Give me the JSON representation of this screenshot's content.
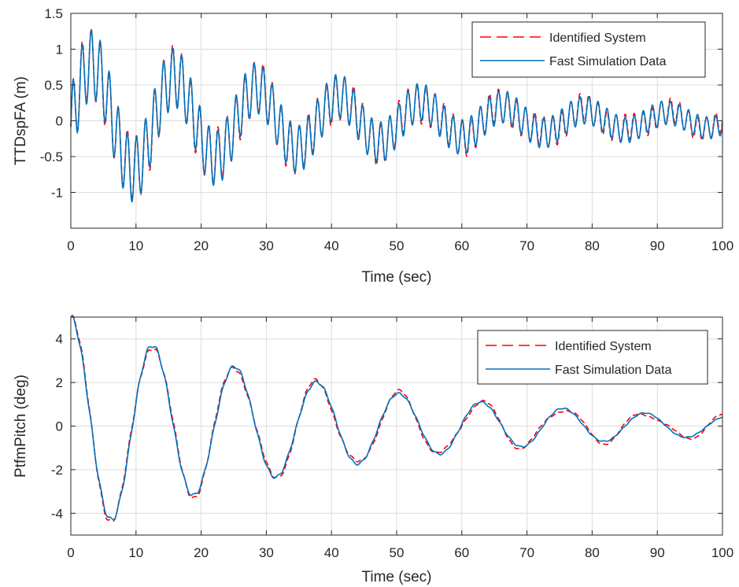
{
  "chart_data": [
    {
      "type": "line",
      "xlabel": "Time (sec)",
      "ylabel": "TTDspFA (m)",
      "xlim": [
        0,
        100
      ],
      "ylim": [
        -1.5,
        1.5
      ],
      "xticks": [
        0,
        10,
        20,
        30,
        40,
        50,
        60,
        70,
        80,
        90,
        100
      ],
      "yticks": [
        -1,
        -0.5,
        0,
        0.5,
        1,
        1.5
      ],
      "ytick_labels": [
        "-1",
        "-0.5",
        "0",
        "0.5",
        "1",
        "1.5"
      ],
      "grid": true,
      "legend_position": "top-right",
      "series": [
        {
          "name": "Identified System",
          "color": "#ff0000",
          "style": "dashed"
        },
        {
          "name": "Fast Simulation Data",
          "color": "#0072bd",
          "style": "solid"
        }
      ],
      "signal_description": {
        "low_mode_period_sec": 12.6,
        "low_mode_amplitude_start": 0.85,
        "low_mode_decay_per_sec": 0.022,
        "high_mode_frequency_hz": 0.72,
        "high_mode_amplitude_start": 0.5,
        "high_mode_decay_per_sec": 0.012
      }
    },
    {
      "type": "line",
      "xlabel": "Time (sec)",
      "ylabel": "PtfmPitch (deg)",
      "xlim": [
        0,
        100
      ],
      "ylim": [
        -5,
        5
      ],
      "xticks": [
        0,
        10,
        20,
        30,
        40,
        50,
        60,
        70,
        80,
        90,
        100
      ],
      "yticks": [
        -4,
        -2,
        0,
        2,
        4
      ],
      "ytick_labels": [
        "-4",
        "-2",
        "0",
        "2",
        "4"
      ],
      "grid": true,
      "legend_position": "top-right",
      "series": [
        {
          "name": "Identified System",
          "color": "#ff0000",
          "style": "dashed"
        },
        {
          "name": "Fast Simulation Data",
          "color": "#0072bd",
          "style": "solid"
        }
      ],
      "signal_description": {
        "period_sec": 12.6,
        "start_value": 5.0,
        "first_min": -4.6,
        "decay_per_sec": 0.024
      }
    }
  ]
}
